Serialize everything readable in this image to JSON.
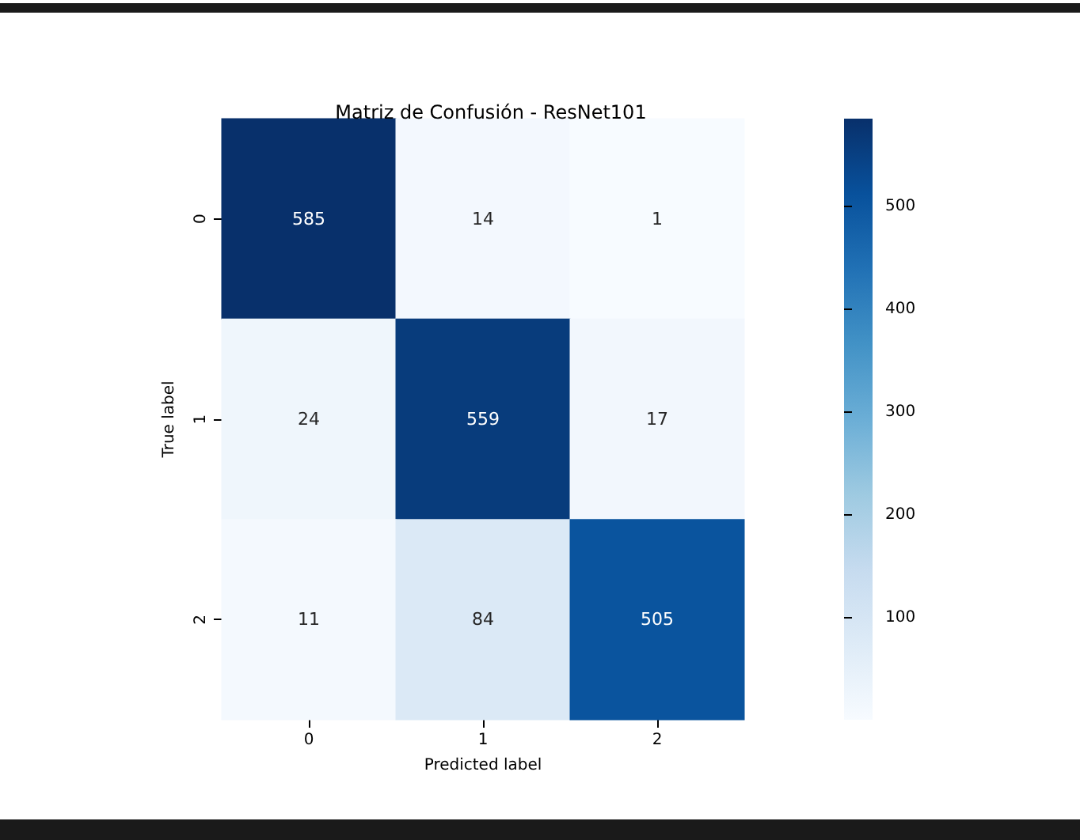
{
  "chart_data": {
    "type": "heatmap",
    "title": "Matriz de Confusión - ResNet101",
    "xlabel": "Predicted label",
    "ylabel": "True label",
    "categories": [
      "0",
      "1",
      "2"
    ],
    "y_categories": [
      "0",
      "1",
      "2"
    ],
    "cells": [
      [
        585,
        14,
        1
      ],
      [
        24,
        559,
        17
      ],
      [
        11,
        84,
        505
      ]
    ],
    "data_labels": true,
    "clim": [
      1,
      585
    ],
    "cticks": [
      100,
      200,
      300,
      400,
      500
    ]
  }
}
